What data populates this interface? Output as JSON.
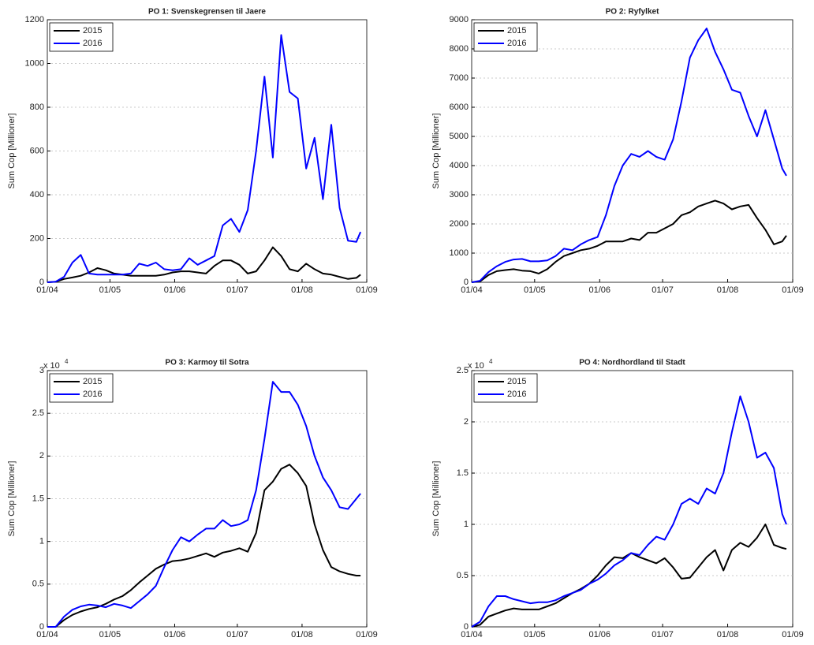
{
  "chart_data": [
    {
      "type": "line",
      "title": "PO 1: Svenskegrensen til Jaere",
      "ylabel": "Sum Cop [Millioner]",
      "x": [
        "01/04",
        "05/04",
        "09/04",
        "13/04",
        "17/04",
        "21/04",
        "25/04",
        "29/04",
        "03/05",
        "07/05",
        "11/05",
        "15/05",
        "19/05",
        "23/05",
        "27/05",
        "31/05",
        "04/06",
        "08/06",
        "12/06",
        "16/06",
        "20/06",
        "24/06",
        "28/06",
        "02/07",
        "06/07",
        "10/07",
        "14/07",
        "18/07",
        "22/07",
        "26/07",
        "30/07",
        "03/08",
        "07/08",
        "11/08",
        "15/08",
        "19/08",
        "23/08",
        "27/08",
        "29/08"
      ],
      "xlim": [
        "01/04",
        "01/09"
      ],
      "xticks": [
        "01/04",
        "01/05",
        "01/06",
        "01/07",
        "01/08",
        "01/09"
      ],
      "ylim": [
        0,
        1200
      ],
      "yticks": [
        0,
        200,
        400,
        600,
        800,
        1000,
        1200
      ],
      "grid": true,
      "legend": "upper left",
      "series": [
        {
          "name": "2015",
          "color": "#000000",
          "values": [
            0,
            2,
            15,
            22,
            30,
            45,
            65,
            55,
            40,
            35,
            30,
            30,
            30,
            30,
            35,
            45,
            50,
            50,
            45,
            40,
            75,
            100,
            100,
            80,
            40,
            50,
            100,
            160,
            120,
            60,
            50,
            85,
            60,
            40,
            35,
            25,
            15,
            20,
            35
          ]
        },
        {
          "name": "2016",
          "color": "#0000ff",
          "values": [
            0,
            3,
            25,
            90,
            125,
            40,
            35,
            35,
            35,
            35,
            40,
            85,
            75,
            90,
            60,
            55,
            60,
            110,
            80,
            100,
            120,
            260,
            290,
            230,
            330,
            600,
            940,
            570,
            1130,
            870,
            840,
            520,
            660,
            380,
            720,
            340,
            190,
            185,
            230
          ]
        }
      ]
    },
    {
      "type": "line",
      "title": "PO 2: Ryfylket",
      "ylabel": "Sum Cop [Millioner]",
      "x": [
        "01/04",
        "05/04",
        "09/04",
        "13/04",
        "17/04",
        "21/04",
        "25/04",
        "29/04",
        "03/05",
        "07/05",
        "11/05",
        "15/05",
        "19/05",
        "23/05",
        "27/05",
        "31/05",
        "04/06",
        "08/06",
        "12/06",
        "16/06",
        "20/06",
        "24/06",
        "28/06",
        "02/07",
        "06/07",
        "10/07",
        "14/07",
        "18/07",
        "22/07",
        "26/07",
        "30/07",
        "03/08",
        "07/08",
        "11/08",
        "15/08",
        "19/08",
        "23/08",
        "27/08",
        "29/08"
      ],
      "xlim": [
        "01/04",
        "01/09"
      ],
      "xticks": [
        "01/04",
        "01/05",
        "01/06",
        "01/07",
        "01/08",
        "01/09"
      ],
      "ylim": [
        0,
        9000
      ],
      "yticks": [
        0,
        1000,
        2000,
        3000,
        4000,
        5000,
        6000,
        7000,
        8000,
        9000
      ],
      "grid": true,
      "legend": "upper left",
      "series": [
        {
          "name": "2015",
          "color": "#000000",
          "values": [
            0,
            30,
            250,
            380,
            420,
            450,
            400,
            380,
            300,
            450,
            700,
            900,
            1000,
            1100,
            1150,
            1250,
            1400,
            1400,
            1400,
            1500,
            1450,
            1700,
            1700,
            1850,
            2000,
            2300,
            2400,
            2600,
            2700,
            2800,
            2700,
            2500,
            2600,
            2650,
            2200,
            1800,
            1300,
            1400,
            1600
          ]
        },
        {
          "name": "2016",
          "color": "#0000ff",
          "values": [
            0,
            50,
            350,
            550,
            700,
            780,
            800,
            720,
            720,
            750,
            900,
            1150,
            1100,
            1300,
            1450,
            1550,
            2300,
            3300,
            4000,
            4400,
            4300,
            4500,
            4300,
            4200,
            4900,
            6200,
            7700,
            8300,
            8700,
            7900,
            7300,
            6600,
            6500,
            5700,
            5000,
            5900,
            4900,
            3900,
            3650
          ]
        }
      ]
    },
    {
      "type": "line",
      "title": "PO 3: Karmoy til Sotra",
      "ylabel": "Sum Cop [Millioner]",
      "y_multiplier": {
        "base": "x 10",
        "exponent": "4"
      },
      "x": [
        "01/04",
        "05/04",
        "09/04",
        "13/04",
        "17/04",
        "21/04",
        "25/04",
        "29/04",
        "03/05",
        "07/05",
        "11/05",
        "15/05",
        "19/05",
        "23/05",
        "27/05",
        "31/05",
        "04/06",
        "08/06",
        "12/06",
        "16/06",
        "20/06",
        "24/06",
        "28/06",
        "02/07",
        "06/07",
        "10/07",
        "14/07",
        "18/07",
        "22/07",
        "26/07",
        "30/07",
        "03/08",
        "07/08",
        "11/08",
        "15/08",
        "19/08",
        "23/08",
        "27/08",
        "29/08"
      ],
      "xlim": [
        "01/04",
        "01/09"
      ],
      "xticks": [
        "01/04",
        "01/05",
        "01/06",
        "01/07",
        "01/08",
        "01/09"
      ],
      "ylim": [
        0,
        30000
      ],
      "yticks": [
        0,
        {
          "value": 5000,
          "label": "0.5"
        },
        {
          "value": 10000,
          "label": "1"
        },
        {
          "value": 15000,
          "label": "1.5"
        },
        {
          "value": 20000,
          "label": "2"
        },
        {
          "value": 25000,
          "label": "2.5"
        },
        {
          "value": 30000,
          "label": "3"
        }
      ],
      "grid": true,
      "legend": "upper left",
      "series": [
        {
          "name": "2015",
          "color": "#000000",
          "values": [
            0,
            0,
            800,
            1400,
            1800,
            2100,
            2300,
            2700,
            3200,
            3600,
            4300,
            5200,
            6000,
            6800,
            7300,
            7700,
            7800,
            8000,
            8300,
            8600,
            8200,
            8700,
            8900,
            9200,
            8800,
            11000,
            16000,
            17000,
            18500,
            19000,
            18000,
            16500,
            12000,
            9000,
            7000,
            6500,
            6200,
            6000,
            6000
          ]
        },
        {
          "name": "2016",
          "color": "#0000ff",
          "values": [
            0,
            0,
            1200,
            2000,
            2400,
            2600,
            2500,
            2300,
            2700,
            2500,
            2200,
            3000,
            3800,
            4800,
            7000,
            9000,
            10500,
            10000,
            10800,
            11500,
            11500,
            12500,
            11800,
            12000,
            12500,
            16000,
            22000,
            28700,
            27500,
            27500,
            26000,
            23500,
            20000,
            17500,
            16000,
            14000,
            13800,
            15000,
            15600
          ]
        }
      ]
    },
    {
      "type": "line",
      "title": "PO 4: Nordhordland til Stadt",
      "ylabel": "Sum Cop [Millioner]",
      "y_multiplier": {
        "base": "x 10",
        "exponent": "4"
      },
      "x": [
        "01/04",
        "05/04",
        "09/04",
        "13/04",
        "17/04",
        "21/04",
        "25/04",
        "29/04",
        "03/05",
        "07/05",
        "11/05",
        "15/05",
        "19/05",
        "23/05",
        "27/05",
        "31/05",
        "04/06",
        "08/06",
        "12/06",
        "16/06",
        "20/06",
        "24/06",
        "28/06",
        "02/07",
        "06/07",
        "10/07",
        "14/07",
        "18/07",
        "22/07",
        "26/07",
        "30/07",
        "03/08",
        "07/08",
        "11/08",
        "15/08",
        "19/08",
        "23/08",
        "27/08",
        "29/08"
      ],
      "xlim": [
        "01/04",
        "01/09"
      ],
      "xticks": [
        "01/04",
        "01/05",
        "01/06",
        "01/07",
        "01/08",
        "01/09"
      ],
      "ylim": [
        0,
        25000
      ],
      "yticks": [
        0,
        {
          "value": 5000,
          "label": "0.5"
        },
        {
          "value": 10000,
          "label": "1"
        },
        {
          "value": 15000,
          "label": "1.5"
        },
        {
          "value": 20000,
          "label": "2"
        },
        {
          "value": 25000,
          "label": "2.5"
        }
      ],
      "grid": true,
      "legend": "upper left",
      "series": [
        {
          "name": "2015",
          "color": "#000000",
          "values": [
            0,
            200,
            1000,
            1300,
            1600,
            1800,
            1700,
            1700,
            1700,
            2000,
            2300,
            2800,
            3300,
            3700,
            4200,
            5000,
            6000,
            6800,
            6700,
            7200,
            6800,
            6500,
            6200,
            6700,
            5800,
            4700,
            4800,
            5800,
            6800,
            7500,
            5500,
            7500,
            8200,
            7800,
            8700,
            10000,
            8000,
            7700,
            7600
          ]
        },
        {
          "name": "2016",
          "color": "#0000ff",
          "values": [
            0,
            500,
            2000,
            3000,
            3000,
            2700,
            2500,
            2300,
            2400,
            2400,
            2600,
            3000,
            3300,
            3600,
            4200,
            4600,
            5200,
            6000,
            6500,
            7200,
            7000,
            8000,
            8800,
            8500,
            10000,
            12000,
            12500,
            12000,
            13500,
            13000,
            15000,
            19000,
            22500,
            20000,
            16500,
            17000,
            15500,
            11000,
            10000
          ]
        }
      ]
    }
  ]
}
